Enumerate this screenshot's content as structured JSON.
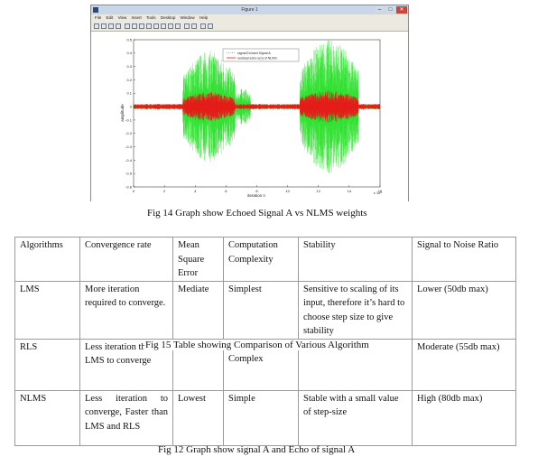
{
  "figure_window": {
    "title": "Figure 1",
    "menu": [
      "File",
      "Edit",
      "View",
      "Insert",
      "Tools",
      "Desktop",
      "Window",
      "Help"
    ],
    "controls": {
      "minimize": "–",
      "maximize": "□",
      "close": "✕"
    }
  },
  "chart_data": {
    "type": "line",
    "xlabel": "iteration n",
    "ylabel": "amplitude",
    "x_exponent_label": "x 10⁴",
    "xlim": [
      0,
      16
    ],
    "ylim": [
      -0.6,
      0.5
    ],
    "x_ticks": [
      "0",
      "2",
      "4",
      "6",
      "8",
      "10",
      "12",
      "14",
      "16"
    ],
    "y_ticks": [
      "0.5",
      "0.4",
      "0.3",
      "0.2",
      "0.1",
      "0",
      "-0.1",
      "-0.2",
      "-0.3",
      "-0.4",
      "-0.5",
      "-0.6"
    ],
    "legend": {
      "placement": "top-center",
      "entries": [
        "signal Echoed Signal A",
        "residual echo e(n) of NLMS"
      ]
    },
    "series": [
      {
        "name": "signal Echoed Signal A",
        "color": "#22e022",
        "bursts": [
          {
            "x_start": 3.2,
            "x_end": 6.6,
            "amplitude": 0.42
          },
          {
            "x_start": 6.6,
            "x_end": 7.6,
            "amplitude": 0.14
          },
          {
            "x_start": 10.8,
            "x_end": 14.6,
            "amplitude": 0.5
          }
        ],
        "baseline_amplitude": 0.02
      },
      {
        "name": "residual echo e(n) of NLMS",
        "color": "#e81a1a",
        "bursts": [
          {
            "x_start": 3.2,
            "x_end": 6.6,
            "amplitude": 0.11
          },
          {
            "x_start": 10.8,
            "x_end": 14.6,
            "amplitude": 0.12
          }
        ],
        "baseline_amplitude": 0.02
      }
    ]
  },
  "captions": {
    "fig14": "Fig 14 Graph show Echoed Signal A vs NLMS weights",
    "fig15": "Fig 15 Table showing Comparison of Various Algorithm",
    "fig12": "Fig 12 Graph show signal A and Echo of signal A"
  },
  "table": {
    "headers": [
      "Algorithms",
      "Convergence rate",
      "Mean Square Error",
      "Computation Complexity",
      "Stability",
      "Signal to Noise Ratio"
    ],
    "rows": [
      [
        "LMS",
        "More iteration required to converge.",
        "Mediate",
        "Simplest",
        "Sensitive to scaling of its input, therefore it’s hard to choose step size to give stability",
        "Lower (50db max)"
      ],
      [
        "RLS",
        "Less iteration than LMS to converge",
        "",
        "Complex",
        "",
        "Moderate (55db max)"
      ],
      [
        "NLMS",
        "Less iteration to converge, Faster than LMS and RLS",
        "Lowest",
        "Simple",
        "Stable with a small value of step-size",
        "High (80db max)"
      ]
    ]
  }
}
